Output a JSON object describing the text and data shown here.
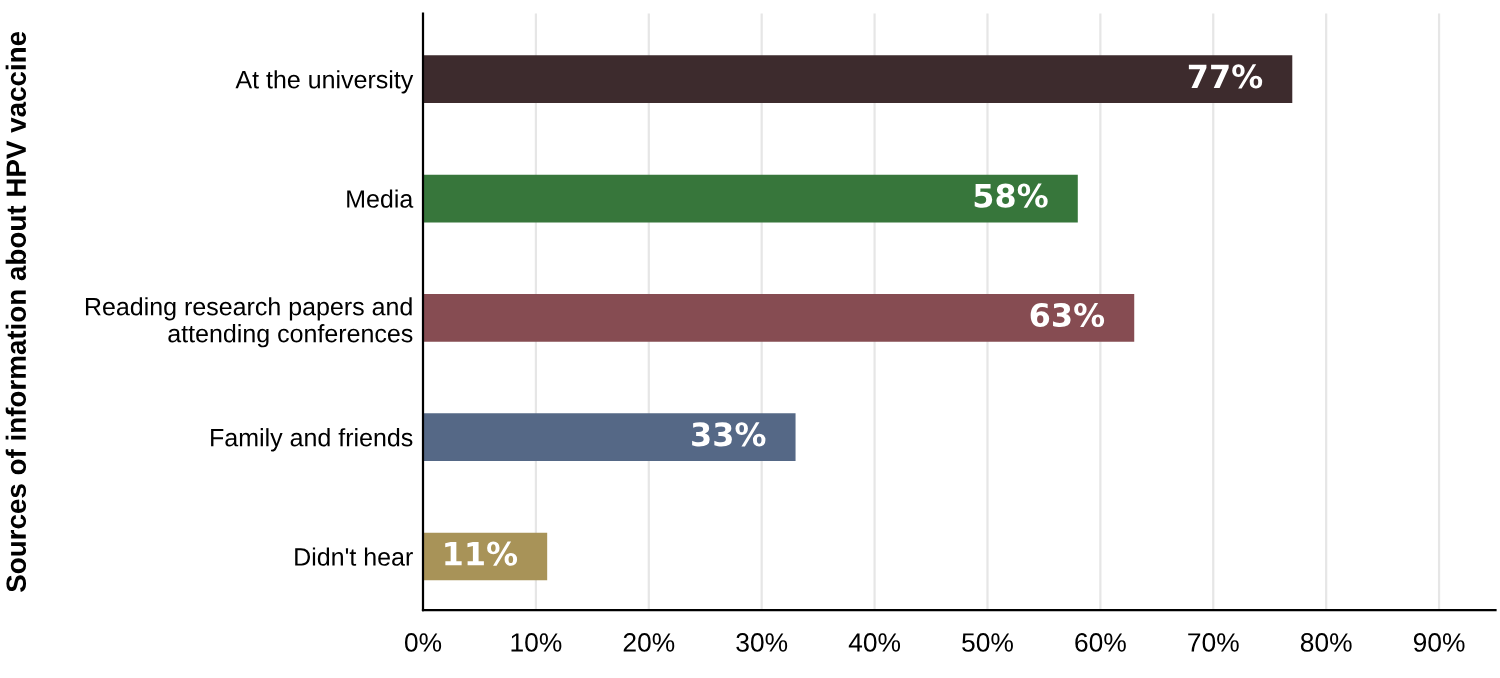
{
  "chart_data": {
    "type": "bar",
    "orientation": "horizontal",
    "ylabel": "Sources of information about HPV vaccine",
    "categories": [
      "At the university",
      "Media",
      "Reading research papers and\nattending conferences",
      "Family and friends",
      "Didn't hear"
    ],
    "values": [
      77,
      58,
      63,
      33,
      11
    ],
    "colors": [
      "#3d2b2d",
      "#37763b",
      "#864c52",
      "#556886",
      "#a89358"
    ],
    "value_labels": [
      "77%",
      "58%",
      "63%",
      "33%",
      "11%"
    ],
    "xlim": [
      0,
      95
    ],
    "xticks": [
      {
        "value": 0,
        "label": "0%"
      },
      {
        "value": 10,
        "label": "10%"
      },
      {
        "value": 20,
        "label": "20%"
      },
      {
        "value": 30,
        "label": "30%"
      },
      {
        "value": 40,
        "label": "40%"
      },
      {
        "value": 50,
        "label": "50%"
      },
      {
        "value": 60,
        "label": "60%"
      },
      {
        "value": 70,
        "label": "70%"
      },
      {
        "value": 80,
        "label": "80%"
      },
      {
        "value": 90,
        "label": "90%"
      }
    ],
    "grid": "x"
  }
}
